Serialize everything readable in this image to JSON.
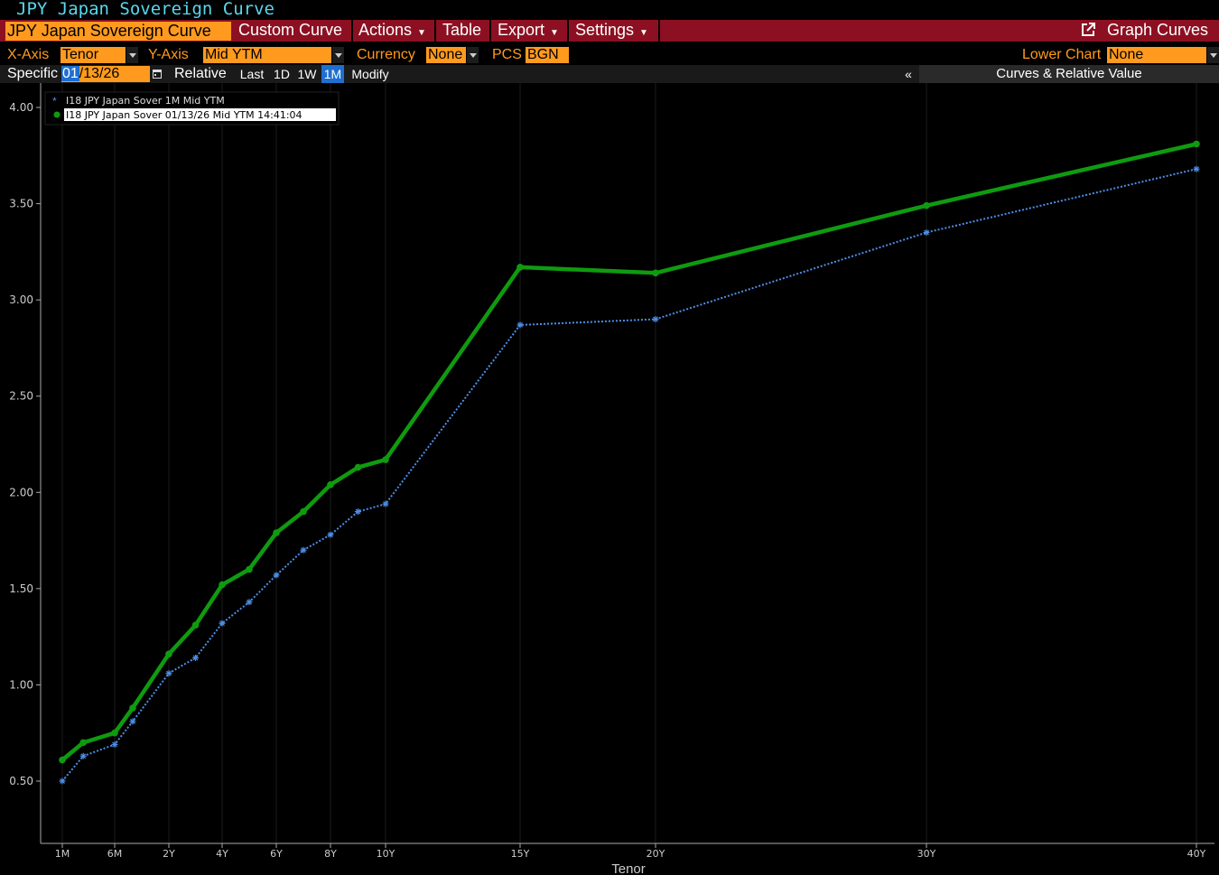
{
  "window_title": "JPY Japan Sovereign Curve",
  "menu": {
    "curve_selector": "JPY Japan Sovereign Curve",
    "custom_curve": "Custom Curve",
    "actions": "Actions",
    "table": "Table",
    "export": "Export",
    "settings": "Settings",
    "graph_curves": "Graph Curves"
  },
  "options": {
    "xaxis_label": "X-Axis",
    "xaxis_value": "Tenor",
    "yaxis_label": "Y-Axis",
    "yaxis_value": "Mid YTM",
    "currency_label": "Currency",
    "currency_value": "None",
    "pcs_label": "PCS",
    "pcs_value": "BGN",
    "lower_chart_label": "Lower Chart",
    "lower_chart_value": "None"
  },
  "specific_row": {
    "label": "Specific",
    "date_month": "01",
    "date_rest": "/13/26",
    "relative": "Relative",
    "ranges": [
      "Last",
      "1D",
      "1W",
      "1M"
    ],
    "active_range": "1M",
    "modify": "Modify",
    "collapse": "«",
    "panel_label": "Curves & Relative Value"
  },
  "colors": {
    "accent_orange": "#ff9a1e",
    "menu_red": "#8c1022",
    "title_cyan": "#5ad7ee",
    "current_curve": "#0f9b0f",
    "prior_curve": "#4c8fe8"
  },
  "chart_data": {
    "type": "line",
    "xlabel": "Tenor",
    "ylabel": "",
    "ylim": [
      0.25,
      4.15
    ],
    "yticks": [
      "4.00",
      "3.50",
      "3.00",
      "2.50",
      "2.00",
      "1.50",
      "1.00",
      "0.50"
    ],
    "xtick_labels": [
      "1M",
      "6M",
      "2Y",
      "4Y",
      "6Y",
      "8Y",
      "10Y",
      "15Y",
      "20Y",
      "30Y",
      "40Y"
    ],
    "xtick_years": [
      0.0833,
      0.5,
      2,
      4,
      6,
      8,
      10,
      15,
      20,
      30,
      40
    ],
    "grid": "vertical",
    "legend_position": "top-left",
    "series": [
      {
        "name": "I18 JPY Japan Sover 1M Mid YTM",
        "style": "dotted-star",
        "color": "#4c8fe8",
        "x": [
          0.0833,
          0.25,
          0.5,
          1,
          2,
          3,
          4,
          5,
          6,
          7,
          8,
          9,
          10,
          15,
          20,
          30,
          40
        ],
        "values": [
          0.5,
          0.63,
          0.69,
          0.81,
          1.06,
          1.14,
          1.32,
          1.43,
          1.57,
          1.7,
          1.78,
          1.9,
          1.94,
          2.87,
          2.9,
          3.35,
          3.68
        ]
      },
      {
        "name": "I18 JPY Japan Sover 01/13/26 Mid YTM 14:41:04",
        "style": "solid-dot",
        "color": "#0f9b0f",
        "x": [
          0.0833,
          0.25,
          0.5,
          1,
          2,
          3,
          4,
          5,
          6,
          7,
          8,
          9,
          10,
          15,
          20,
          30,
          40
        ],
        "values": [
          0.61,
          0.7,
          0.75,
          0.88,
          1.16,
          1.31,
          1.52,
          1.6,
          1.79,
          1.9,
          2.04,
          2.13,
          2.17,
          3.17,
          3.14,
          3.49,
          3.81
        ]
      }
    ]
  }
}
